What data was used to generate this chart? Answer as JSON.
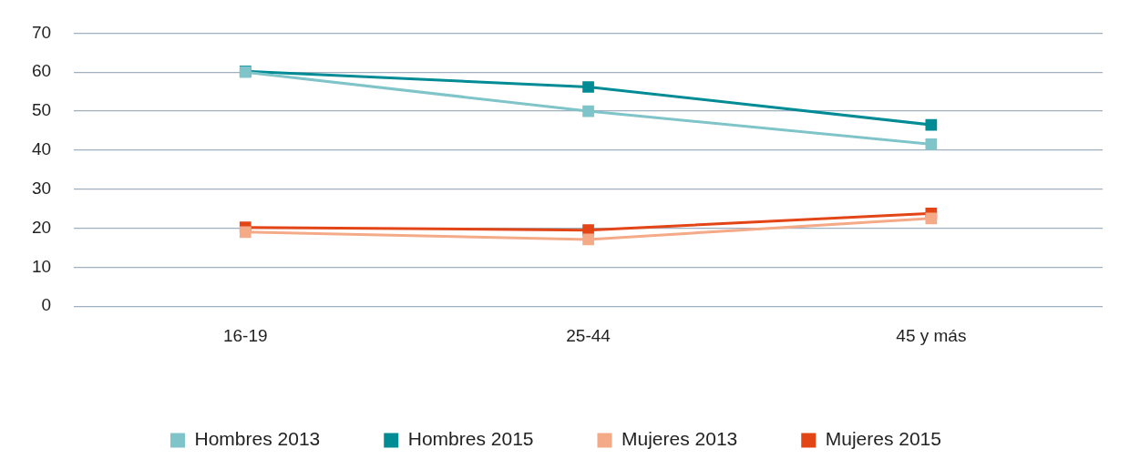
{
  "chart_data": {
    "type": "line",
    "categories": [
      "16-19",
      "25-44",
      "45 y más"
    ],
    "series": [
      {
        "name": "Hombres 2013",
        "color": "#7fc4c8",
        "values": [
          60,
          50,
          41.5
        ]
      },
      {
        "name": "Hombres 2015",
        "color": "#008b95",
        "values": [
          60.2,
          56.2,
          46.5
        ]
      },
      {
        "name": "Mujeres 2013",
        "color": "#f4a987",
        "values": [
          19,
          17.1,
          22.5
        ]
      },
      {
        "name": "Mujeres 2015",
        "color": "#e44516",
        "values": [
          20.2,
          19.5,
          23.8
        ]
      }
    ],
    "ylim": [
      0,
      70
    ],
    "yticks": [
      0,
      10,
      20,
      30,
      40,
      50,
      60,
      70
    ],
    "grid": "y",
    "legend": "bottom",
    "marker": "square",
    "line_style": "solid"
  }
}
